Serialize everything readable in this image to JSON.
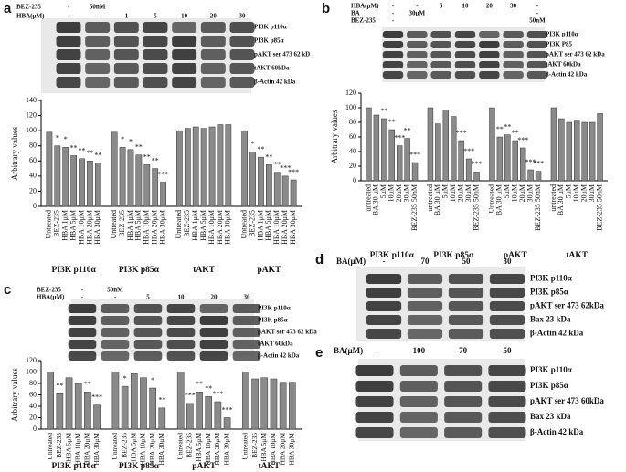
{
  "chart_data": [
    {
      "type": "bar",
      "ylabel": "Arbitrary values",
      "ylim": [
        0,
        140
      ],
      "yticks": [
        0,
        20,
        40,
        60,
        80,
        100,
        120,
        140
      ],
      "color": "#8a8a8a",
      "groups": [
        {
          "name": "PI3K p110α",
          "categories": [
            "Untreated",
            "BEZ-235",
            "HBA 1μM",
            "HBA 5μM",
            "HBA 10μM",
            "HBA 20μM",
            "HBA 30μM"
          ],
          "values": [
            98,
            80,
            78,
            67,
            63,
            60,
            57
          ],
          "annotations": [
            null,
            "*",
            "*",
            "**",
            "**",
            "**",
            "**"
          ]
        },
        {
          "name": "PI3K p85α",
          "categories": [
            "Untreated",
            "BEZ-235",
            "HBA 1μM",
            "HBA 5μM",
            "HBA 10μM",
            "HBA 20μM",
            "HBA 30μM"
          ],
          "values": [
            98,
            78,
            75,
            68,
            55,
            50,
            32
          ],
          "annotations": [
            null,
            "*",
            "*",
            "**",
            "**",
            "**",
            "***"
          ]
        },
        {
          "name": "tAKT",
          "categories": [
            "Untreated",
            "BEZ-235",
            "HBA 1μM",
            "HBA 5μM",
            "HBA 10μM",
            "HBA 20μM",
            "HBA 30μM"
          ],
          "values": [
            100,
            103,
            105,
            103,
            105,
            108,
            108
          ],
          "annotations": [
            null,
            null,
            null,
            null,
            null,
            null,
            null
          ]
        },
        {
          "name": "pAKT",
          "categories": [
            "Untreated",
            "BEZ-235",
            "HBA 1μM",
            "HBA 5μM",
            "HBA 10μM",
            "HBA 20μM",
            "HBA 30μM"
          ],
          "values": [
            100,
            72,
            65,
            55,
            45,
            40,
            35
          ],
          "annotations": [
            null,
            "*",
            "**",
            "**",
            "**",
            "***",
            "***"
          ]
        }
      ]
    },
    {
      "type": "bar",
      "ylabel": "Arbitrary values",
      "ylim": [
        0,
        120
      ],
      "yticks": [
        0,
        20,
        40,
        60,
        80,
        100,
        120
      ],
      "color": "#8a8a8a",
      "groups": [
        {
          "name": "PI3K p110α",
          "categories": [
            "untreated",
            "BA 30 μM",
            "5μM",
            "10μM",
            "20μM",
            "30μM",
            "BEZ-235 50nM"
          ],
          "values": [
            100,
            90,
            85,
            70,
            48,
            58,
            25
          ],
          "annotations": [
            null,
            null,
            "**",
            "**",
            "***",
            "**",
            "***"
          ]
        },
        {
          "name": "PI3K p85α",
          "categories": [
            "untreated",
            "BA 30 μM",
            "5μM",
            "10μM",
            "20μM",
            "30μM",
            "BEZ-235 50nM"
          ],
          "values": [
            100,
            78,
            97,
            88,
            55,
            30,
            12
          ],
          "annotations": [
            null,
            null,
            null,
            null,
            "***",
            "***",
            "***"
          ]
        },
        {
          "name": "pAKT",
          "categories": [
            "Untreated",
            "BA 30 μM",
            "5μM",
            "10μM",
            "20μM",
            "30μM",
            "BEZ-235 50nM"
          ],
          "values": [
            100,
            60,
            63,
            55,
            45,
            15,
            13
          ],
          "annotations": [
            null,
            "**",
            "**",
            "**",
            "***",
            "***",
            "***"
          ]
        },
        {
          "name": "tAKT",
          "categories": [
            "untreated",
            "BA 30 μM",
            "5μM",
            "10μM",
            "20μM",
            "30μM",
            "BEZ-235 50nM"
          ],
          "values": [
            100,
            85,
            80,
            83,
            80,
            80,
            92
          ],
          "annotations": [
            null,
            null,
            null,
            null,
            null,
            null,
            null
          ]
        }
      ]
    },
    {
      "type": "bar",
      "ylabel": "Arbitrary values",
      "ylim": [
        0,
        120
      ],
      "yticks": [
        0,
        20,
        40,
        60,
        80,
        100,
        120
      ],
      "color": "#8a8a8a",
      "groups": [
        {
          "name": "PI3K p110α",
          "categories": [
            "Untreated",
            "BEZ-235",
            "HBA 5μM",
            "HBA 10μM",
            "HBA 20μM",
            "HBA 30μM"
          ],
          "values": [
            100,
            62,
            90,
            80,
            65,
            42
          ],
          "annotations": [
            null,
            "**",
            null,
            null,
            "**",
            "***"
          ]
        },
        {
          "name": "PI3K p85α",
          "categories": [
            "Untreated",
            "BEZ-235",
            "HBA 5μM",
            "HBA 10μM",
            "HBA 20μM",
            "HBA 30μM"
          ],
          "values": [
            100,
            75,
            97,
            90,
            72,
            37
          ],
          "annotations": [
            null,
            "*",
            null,
            null,
            "*",
            "**"
          ]
        },
        {
          "name": "pAKT",
          "categories": [
            "Untreated",
            "BEZ-235",
            "HBA 5μM",
            "HBA 10μM",
            "HBA 20μM",
            "HBA 30μM"
          ],
          "values": [
            100,
            45,
            65,
            57,
            48,
            20
          ],
          "annotations": [
            null,
            "***",
            "**",
            "**",
            "***",
            "***"
          ]
        },
        {
          "name": "tAKT",
          "categories": [
            "Untreated",
            "BEZ-235",
            "HBA 5μM",
            "HBA 10μM",
            "HBA 20μM",
            "HBA 30μM"
          ],
          "values": [
            100,
            88,
            90,
            88,
            82,
            82
          ],
          "annotations": [
            null,
            null,
            null,
            null,
            null,
            null
          ]
        }
      ]
    }
  ],
  "panels": [
    {
      "letter": "a",
      "header": [
        {
          "label": "BEZ-235",
          "lanes": [
            "-",
            "50nM",
            null,
            null,
            null,
            null,
            null
          ]
        },
        {
          "label": "HBA(μM)",
          "lanes": [
            "-",
            "-",
            "1",
            "5",
            "10",
            "20",
            "30"
          ]
        }
      ],
      "bands": [
        "PI3K p110α",
        "PI3K p85α",
        "pAKT ser 473 62 kD",
        "tAKT 60kDa",
        "β-Actin 42 kDa"
      ]
    },
    {
      "letter": "b",
      "header": [
        {
          "label": "HBA(μM)",
          "lanes": [
            "-",
            "-",
            "5",
            "10",
            "20",
            "30",
            "-"
          ]
        },
        {
          "label": "BA",
          "lanes": [
            "-",
            "30μM",
            null,
            null,
            null,
            null,
            "-"
          ]
        },
        {
          "label": "BEZ-235",
          "lanes": [
            "-",
            null,
            null,
            null,
            null,
            null,
            "50nM"
          ]
        }
      ],
      "bands": [
        "PI3K p110α",
        "PI3K P85",
        "pAKT ser 473 62 kDa",
        "tAKT 60kDa",
        "β-Actin 42 kDa"
      ]
    },
    {
      "letter": "c",
      "header": [
        {
          "label": "BEZ-235",
          "lanes": [
            "-",
            "50nM",
            null,
            null,
            null,
            null
          ]
        },
        {
          "label": "HBA(μM)",
          "lanes": [
            "-",
            "-",
            "5",
            "10",
            "20",
            "30"
          ]
        }
      ],
      "bands": [
        "PI3K p110α",
        "PI3K p85α",
        "pAKT ser 473 62 kDa",
        "tAKT 60kDa",
        "β-Actin 42 kDa"
      ]
    },
    {
      "letter": "d",
      "header": [
        {
          "label": "BA(μM)",
          "lanes": [
            "-",
            "70",
            "50",
            "30"
          ]
        }
      ],
      "bands": [
        "PI3K p110α",
        "PI3K p85α",
        "pAKT ser 473 62kDa",
        "Bax 23 kDa",
        "β-Actin 42 kDa"
      ]
    },
    {
      "letter": "e",
      "header": [
        {
          "label": "BA(μM)",
          "lanes": [
            "-",
            "100",
            "70",
            "50"
          ]
        }
      ],
      "bands": [
        "PI3K p110α",
        "PI3K p85α",
        "pAKT ser 473 60kDa",
        "Bax 23 kDa",
        "β-Actin 42 kDa"
      ]
    }
  ]
}
